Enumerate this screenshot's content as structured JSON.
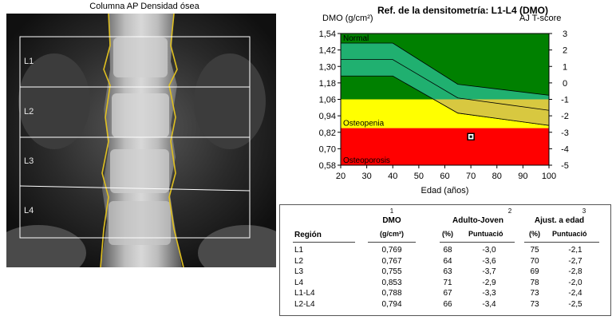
{
  "scan": {
    "caption": "Columna AP Densidad ósea",
    "regions": [
      "L1",
      "L2",
      "L3",
      "L4"
    ]
  },
  "reference": {
    "title": "Ref. de la densitometría: L1-L4 (DMO)",
    "left_axis_title": "DMO (g/cm²)",
    "right_axis_title": "AJ T-score",
    "zone_labels": {
      "normal": "Normal",
      "osteopenia": "Osteopenia",
      "osteoporosis": "Osteoporosis"
    },
    "x_label": "Edad (años)"
  },
  "chart_data": {
    "type": "area",
    "xlabel": "Edad (años)",
    "ylabel": "DMO (g/cm²)",
    "xlim": [
      20,
      100
    ],
    "ylim": [
      0.58,
      1.54
    ],
    "x_ticks": [
      "20",
      "30",
      "40",
      "50",
      "60",
      "70",
      "80",
      "90",
      "100"
    ],
    "y_ticks": [
      "1,54",
      "1,42",
      "1,30",
      "1,18",
      "1,06",
      "0,94",
      "0,82",
      "0,70",
      "0,58"
    ],
    "y2_label": "AJ T-score",
    "y2_ticks": [
      "3",
      "2",
      "1",
      "0",
      "-1",
      "-2",
      "-3",
      "-4",
      "-5"
    ],
    "zones": [
      {
        "name": "Normal",
        "from": 1.06,
        "to": 1.54,
        "color": "#008000"
      },
      {
        "name": "Osteopenia",
        "from": 0.85,
        "to": 1.06,
        "color": "#ffff00"
      },
      {
        "name": "Osteoporosis",
        "from": 0.58,
        "to": 0.85,
        "color": "#ff0000"
      }
    ],
    "reference_band_outer": {
      "x": [
        20,
        40,
        65,
        100
      ],
      "upper": [
        1.47,
        1.47,
        1.17,
        1.09
      ],
      "lower": [
        1.23,
        1.23,
        0.96,
        0.87
      ]
    },
    "reference_band_inner": {
      "x": [
        20,
        40,
        65,
        100
      ],
      "upper": [
        1.35,
        1.35,
        1.07,
        0.98
      ],
      "lower": [
        1.35,
        1.35,
        1.07,
        0.98
      ]
    },
    "patient_point": {
      "x": 70,
      "y": 0.788
    },
    "colors": {
      "band": "#20b070",
      "band_low": "#d8c840",
      "band_line": "#000000"
    }
  },
  "results_table": {
    "col_headers": {
      "region": "Región",
      "dmo": "DMO",
      "dmo_unit": "(g/cm²)",
      "adult": "Adulto-Joven",
      "age": "Ajust. a edad",
      "pct": "(%)",
      "score": "Puntuació"
    },
    "footnotes": [
      "1",
      "2",
      "3"
    ],
    "rows": [
      {
        "region": "L1",
        "dmo": "0,769",
        "adult_pct": "68",
        "adult_score": "-3,0",
        "age_pct": "75",
        "age_score": "-2,1"
      },
      {
        "region": "L2",
        "dmo": "0,767",
        "adult_pct": "64",
        "adult_score": "-3,6",
        "age_pct": "70",
        "age_score": "-2,7"
      },
      {
        "region": "L3",
        "dmo": "0,755",
        "adult_pct": "63",
        "adult_score": "-3,7",
        "age_pct": "69",
        "age_score": "-2,8"
      },
      {
        "region": "L4",
        "dmo": "0,853",
        "adult_pct": "71",
        "adult_score": "-2,9",
        "age_pct": "78",
        "age_score": "-2,0"
      },
      {
        "region": "L1-L4",
        "dmo": "0,788",
        "adult_pct": "67",
        "adult_score": "-3,3",
        "age_pct": "73",
        "age_score": "-2,4"
      },
      {
        "region": "L2-L4",
        "dmo": "0,794",
        "adult_pct": "66",
        "adult_score": "-3,4",
        "age_pct": "73",
        "age_score": "-2,5"
      }
    ]
  }
}
